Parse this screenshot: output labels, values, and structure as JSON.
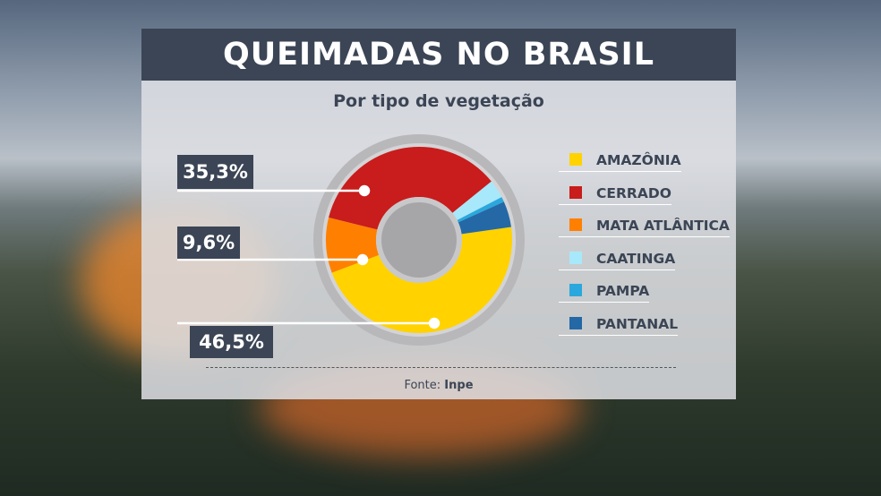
{
  "title": "QUEIMADAS NO BRASIL",
  "subtitle": "Por tipo de vegetação",
  "source_label": "Fonte:",
  "source_value": "Inpe",
  "chart_data": {
    "type": "pie",
    "donut": true,
    "title": "QUEIMADAS NO BRASIL",
    "subtitle": "Por tipo de vegetação",
    "legend_position": "right",
    "categories": [
      "AMAZÔNIA",
      "CERRADO",
      "MATA ATLÂNTICA",
      "CAATINGA",
      "PAMPA",
      "PANTANAL"
    ],
    "values": [
      46.5,
      35.3,
      9.6,
      3.2,
      0.9,
      4.5
    ],
    "colors": [
      "#ffd200",
      "#c91c1c",
      "#ff8000",
      "#a8e8fb",
      "#2aa8de",
      "#2468a6"
    ],
    "data_labels": {
      "AMAZÔNIA": "46,5%",
      "CERRADO": "35,3%",
      "MATA ATLÂNTICA": "9,6%"
    }
  }
}
